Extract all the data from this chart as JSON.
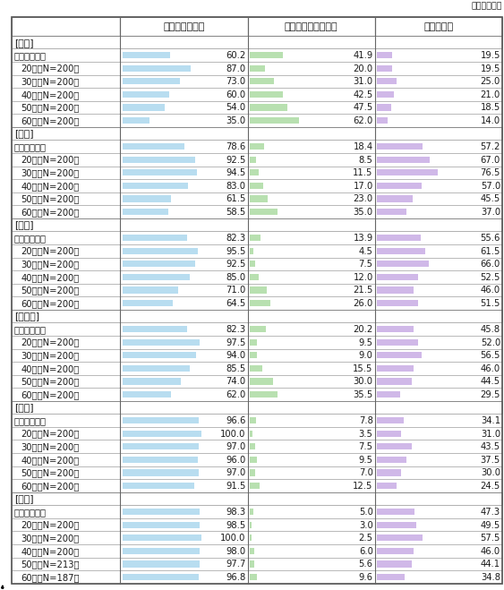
{
  "unit_label": "（単位：％）",
  "col_headers": [
    "スマートフォン",
    "フィーチャーフォン",
    "タブレット"
  ],
  "groups": [
    {
      "name": "日本",
      "rows": [
        {
          "label": "全体加重平均",
          "vals": [
            60.2,
            41.9,
            19.5
          ],
          "indent": false
        },
        {
          "label": "20代（N=200）",
          "vals": [
            87.0,
            20.0,
            19.5
          ],
          "indent": true
        },
        {
          "label": "30代（N=200）",
          "vals": [
            73.0,
            31.0,
            25.0
          ],
          "indent": true
        },
        {
          "label": "40代（N=200）",
          "vals": [
            60.0,
            42.5,
            21.0
          ],
          "indent": true
        },
        {
          "label": "50代（N=200）",
          "vals": [
            54.0,
            47.5,
            18.5
          ],
          "indent": true
        },
        {
          "label": "60代（N=200）",
          "vals": [
            35.0,
            62.0,
            14.0
          ],
          "indent": true
        }
      ]
    },
    {
      "name": "米国",
      "rows": [
        {
          "label": "全体加重平均",
          "vals": [
            78.6,
            18.4,
            57.2
          ],
          "indent": false
        },
        {
          "label": "20代（N=200）",
          "vals": [
            92.5,
            8.5,
            67.0
          ],
          "indent": true
        },
        {
          "label": "30代（N=200）",
          "vals": [
            94.5,
            11.5,
            76.5
          ],
          "indent": true
        },
        {
          "label": "40代（N=200）",
          "vals": [
            83.0,
            17.0,
            57.0
          ],
          "indent": true
        },
        {
          "label": "50代（N=200）",
          "vals": [
            61.5,
            23.0,
            45.5
          ],
          "indent": true
        },
        {
          "label": "60代（N=200）",
          "vals": [
            58.5,
            35.0,
            37.0
          ],
          "indent": true
        }
      ]
    },
    {
      "name": "英国",
      "rows": [
        {
          "label": "全体加重平均",
          "vals": [
            82.3,
            13.9,
            55.6
          ],
          "indent": false
        },
        {
          "label": "20代（N=200）",
          "vals": [
            95.5,
            4.5,
            61.5
          ],
          "indent": true
        },
        {
          "label": "30代（N=200）",
          "vals": [
            92.5,
            7.5,
            66.0
          ],
          "indent": true
        },
        {
          "label": "40代（N=200）",
          "vals": [
            85.0,
            12.0,
            52.5
          ],
          "indent": true
        },
        {
          "label": "50代（N=200）",
          "vals": [
            71.0,
            21.5,
            46.0
          ],
          "indent": true
        },
        {
          "label": "60代（N=200）",
          "vals": [
            64.5,
            26.0,
            51.5
          ],
          "indent": true
        }
      ]
    },
    {
      "name": "ドイツ",
      "rows": [
        {
          "label": "全体加重平均",
          "vals": [
            82.3,
            20.2,
            45.8
          ],
          "indent": false
        },
        {
          "label": "20代（N=200）",
          "vals": [
            97.5,
            9.5,
            52.0
          ],
          "indent": true
        },
        {
          "label": "30代（N=200）",
          "vals": [
            94.0,
            9.0,
            56.5
          ],
          "indent": true
        },
        {
          "label": "40代（N=200）",
          "vals": [
            85.5,
            15.5,
            46.0
          ],
          "indent": true
        },
        {
          "label": "50代（N=200）",
          "vals": [
            74.0,
            30.0,
            44.5
          ],
          "indent": true
        },
        {
          "label": "60代（N=200）",
          "vals": [
            62.0,
            35.5,
            29.5
          ],
          "indent": true
        }
      ]
    },
    {
      "name": "韓国",
      "rows": [
        {
          "label": "全体加重平均",
          "vals": [
            96.6,
            7.8,
            34.1
          ],
          "indent": false
        },
        {
          "label": "20代（N=200）",
          "vals": [
            100.0,
            3.5,
            31.0
          ],
          "indent": true
        },
        {
          "label": "30代（N=200）",
          "vals": [
            97.0,
            7.5,
            43.5
          ],
          "indent": true
        },
        {
          "label": "40代（N=200）",
          "vals": [
            96.0,
            9.5,
            37.5
          ],
          "indent": true
        },
        {
          "label": "50代（N=200）",
          "vals": [
            97.0,
            7.0,
            30.0
          ],
          "indent": true
        },
        {
          "label": "60代（N=200）",
          "vals": [
            91.5,
            12.5,
            24.5
          ],
          "indent": true
        }
      ]
    },
    {
      "name": "中国",
      "rows": [
        {
          "label": "全体加重平均",
          "vals": [
            98.3,
            5.0,
            47.3
          ],
          "indent": false
        },
        {
          "label": "20代（N=200）",
          "vals": [
            98.5,
            3.0,
            49.5
          ],
          "indent": true
        },
        {
          "label": "30代（N=200）",
          "vals": [
            100.0,
            2.5,
            57.5
          ],
          "indent": true
        },
        {
          "label": "40代（N=200）",
          "vals": [
            98.0,
            6.0,
            46.0
          ],
          "indent": true
        },
        {
          "label": "50代（N=213）",
          "vals": [
            97.7,
            5.6,
            44.1
          ],
          "indent": true
        },
        {
          "label": "60代（N=187）",
          "vals": [
            96.8,
            9.6,
            34.8
          ],
          "indent": true
        }
      ]
    }
  ],
  "bar_colors": [
    "#b8ddf0",
    "#b8e0b0",
    "#d0b8e8"
  ],
  "bg_color": "#ffffff",
  "text_color": "#1a1a1a",
  "border_color": "#aaaaaa",
  "fontsize_header": 8.0,
  "fontsize_row": 7.2,
  "fontsize_group": 7.8,
  "fontsize_unit": 6.8
}
